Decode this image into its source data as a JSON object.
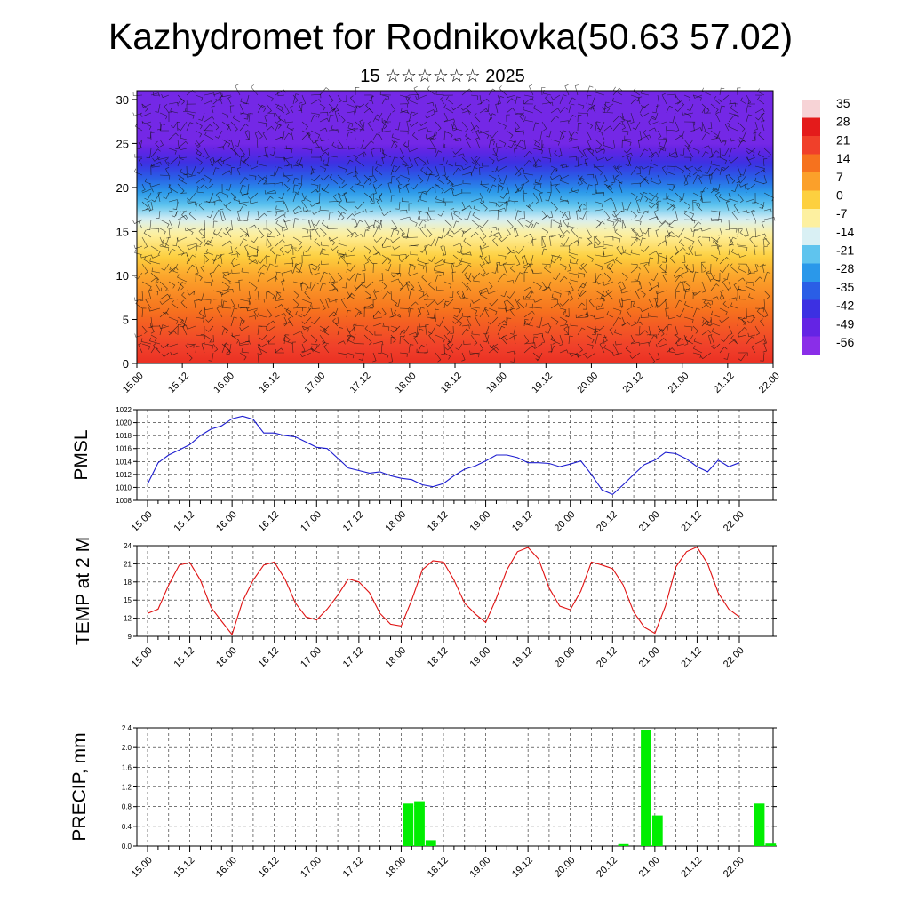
{
  "title": "Kazhydromet for Rodnikovka(50.63 57.02)",
  "subtitle": "15 ☆☆☆☆☆☆ 2025",
  "time_labels": [
    "15.00",
    "15.12",
    "16.00",
    "16.12",
    "17.00",
    "17.12",
    "18.00",
    "18.12",
    "19.00",
    "19.12",
    "20.00",
    "20.12",
    "21.00",
    "21.12",
    "22.00"
  ],
  "colors": {
    "pmsl_line": "#1c1cd0",
    "temp_line": "#e01010",
    "precip_bar": "#00ee00",
    "grid": "#222222"
  },
  "colorbar": {
    "labels": [
      "35",
      "28",
      "21",
      "14",
      "7",
      "0",
      "-7",
      "-14",
      "-21",
      "-28",
      "-35",
      "-42",
      "-49",
      "-56"
    ],
    "colors": [
      "#f7d3d6",
      "#e41b1b",
      "#f0402a",
      "#f6721e",
      "#fba02a",
      "#fdd03f",
      "#fdf0a0",
      "#d9f0f4",
      "#5fc4ee",
      "#2a98ea",
      "#2a5ee6",
      "#3c30e2",
      "#6424e4",
      "#8a2ee8"
    ]
  },
  "chart_data": [
    {
      "type": "heatmap",
      "title": "",
      "ylim": [
        0,
        31
      ],
      "yticks": [
        "0",
        "5",
        "10",
        "15",
        "20",
        "25",
        "30"
      ],
      "x": [
        "15.00",
        "15.12",
        "16.00",
        "16.12",
        "17.00",
        "17.12",
        "18.00",
        "18.12",
        "19.00",
        "19.12",
        "20.00",
        "20.12",
        "21.00",
        "21.12",
        "22.00"
      ],
      "profile_levels": [
        0,
        5,
        10,
        15,
        20,
        25,
        30
      ],
      "profile_values": [
        24,
        16,
        6,
        -8,
        -30,
        -52,
        -52
      ],
      "overlay": "wind barbs"
    },
    {
      "type": "line",
      "ylabel": "PMSL",
      "ylim": [
        1008,
        1022
      ],
      "yticks": [
        "1008",
        "1010",
        "1012",
        "1014",
        "1016",
        "1018",
        "1020",
        "1022"
      ],
      "series": [
        {
          "values": [
            1010.5,
            1013.8,
            1015.0,
            1015.8,
            1016.6,
            1018.0,
            1019.0,
            1019.5,
            1020.6,
            1021.0,
            1020.5,
            1018.4,
            1018.4,
            1018.0,
            1017.8,
            1017.0,
            1016.2,
            1016.0,
            1014.5,
            1013.0,
            1012.6,
            1012.2,
            1012.4,
            1011.8,
            1011.4,
            1011.2,
            1010.4,
            1010.1,
            1010.6,
            1011.8,
            1012.8,
            1013.3,
            1014.1,
            1015.0,
            1015.0,
            1014.6,
            1013.8,
            1013.8,
            1013.7,
            1013.2,
            1013.6,
            1014.1,
            1012.0,
            1009.6,
            1008.9,
            1010.4,
            1012.0,
            1013.5,
            1014.2,
            1015.4,
            1015.2,
            1014.4,
            1013.2,
            1012.4,
            1014.2,
            1013.2,
            1013.8
          ]
        }
      ]
    },
    {
      "type": "line",
      "ylabel": "TEMP at 2 M",
      "ylim": [
        9,
        24
      ],
      "yticks": [
        "9",
        "12",
        "15",
        "18",
        "21",
        "24"
      ],
      "series": [
        {
          "values": [
            12.8,
            13.5,
            17.5,
            20.8,
            21.2,
            18.3,
            13.8,
            11.5,
            9.3,
            14.8,
            18.3,
            20.8,
            21.3,
            18.5,
            14.5,
            12.2,
            11.7,
            13.5,
            15.8,
            18.5,
            18.0,
            16.2,
            12.8,
            11.0,
            10.7,
            15.0,
            20.0,
            21.5,
            21.3,
            18.3,
            14.5,
            12.7,
            11.3,
            15.3,
            20.0,
            23.0,
            23.7,
            21.8,
            17.0,
            14.0,
            13.4,
            16.5,
            21.3,
            20.8,
            20.2,
            17.5,
            13.0,
            10.5,
            9.5,
            14.0,
            20.5,
            23.0,
            23.8,
            21.0,
            16.2,
            13.5,
            12.2
          ]
        }
      ]
    },
    {
      "type": "bar",
      "ylabel": "PRECIP, mm",
      "ylim": [
        0,
        2.4
      ],
      "yticks": [
        "0.0",
        "0.4",
        "0.8",
        "1.2",
        "1.6",
        "2.0",
        "2.4"
      ],
      "bars": [
        {
          "x": 23,
          "value": 0.86
        },
        {
          "x": 24,
          "value": 0.91
        },
        {
          "x": 25,
          "value": 0.12
        },
        {
          "x": 42,
          "value": 0.04
        },
        {
          "x": 44,
          "value": 2.35
        },
        {
          "x": 45,
          "value": 0.62
        },
        {
          "x": 54,
          "value": 0.86
        },
        {
          "x": 55,
          "value": 0.05
        }
      ]
    }
  ]
}
